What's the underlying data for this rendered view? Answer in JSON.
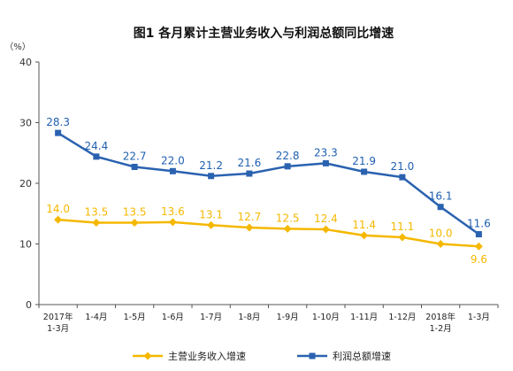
{
  "chart_data": {
    "type": "line",
    "title": "图1  各月累计主营业务收入与利润总额同比增速",
    "unit_label": "（%）",
    "ylim": [
      0,
      40
    ],
    "yticks": [
      "0",
      "10",
      "20",
      "30",
      "40"
    ],
    "categories": [
      [
        "2017年",
        "1-3月"
      ],
      [
        "1-4月"
      ],
      [
        "1-5月"
      ],
      [
        "1-6月"
      ],
      [
        "1-7月"
      ],
      [
        "1-8月"
      ],
      [
        "1-9月"
      ],
      [
        "1-10月"
      ],
      [
        "1-11月"
      ],
      [
        "1-12月"
      ],
      [
        "2018年",
        "1-2月"
      ],
      [
        "1-3月"
      ]
    ],
    "grid": false,
    "legend_position": "bottom",
    "series": [
      {
        "name": "主营业务收入增速",
        "color": "#f5b800",
        "label_color": "#f5b800",
        "values": [
          14.0,
          13.5,
          13.5,
          13.6,
          13.1,
          12.7,
          12.5,
          12.4,
          11.4,
          11.1,
          10.0,
          9.6
        ],
        "labels": [
          "14.0",
          "13.5",
          "13.5",
          "13.6",
          "13.1",
          "12.7",
          "12.5",
          "12.4",
          "11.4",
          "11.1",
          "10.0",
          "9.6"
        ]
      },
      {
        "name": "利润总额增速",
        "color": "#2a62b0",
        "label_color": "#1f5fb0",
        "values": [
          28.3,
          24.4,
          22.7,
          22.0,
          21.2,
          21.6,
          22.8,
          23.3,
          21.9,
          21.0,
          16.1,
          11.6
        ],
        "labels": [
          "28.3",
          "24.4",
          "22.7",
          "22.0",
          "21.2",
          "21.6",
          "22.8",
          "23.3",
          "21.9",
          "21.0",
          "16.1",
          "11.6"
        ]
      }
    ]
  }
}
